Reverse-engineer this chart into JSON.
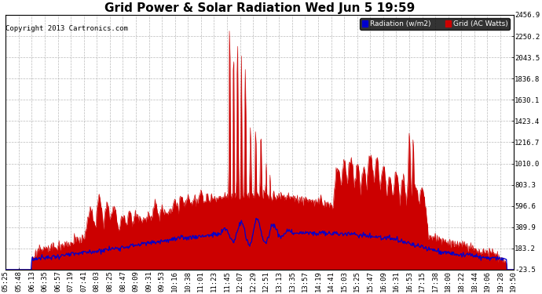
{
  "title": "Grid Power & Solar Radiation Wed Jun 5 19:59",
  "copyright": "Copyright 2013 Cartronics.com",
  "legend_radiation": "Radiation (w/m2)",
  "legend_grid": "Grid (AC Watts)",
  "yticks": [
    2456.9,
    2250.2,
    2043.5,
    1836.8,
    1630.1,
    1423.4,
    1216.7,
    1010.0,
    803.3,
    596.6,
    389.9,
    183.2,
    -23.5
  ],
  "ymin": -23.5,
  "ymax": 2456.9,
  "xtick_labels": [
    "05:25",
    "05:48",
    "06:13",
    "06:35",
    "06:57",
    "07:19",
    "07:41",
    "08:03",
    "08:25",
    "08:47",
    "09:09",
    "09:31",
    "09:53",
    "10:16",
    "10:38",
    "11:01",
    "11:23",
    "11:45",
    "12:07",
    "12:29",
    "12:51",
    "13:13",
    "13:35",
    "13:57",
    "14:19",
    "14:41",
    "15:03",
    "15:25",
    "15:47",
    "16:09",
    "16:31",
    "16:53",
    "17:15",
    "17:38",
    "18:00",
    "18:22",
    "18:44",
    "19:06",
    "19:28",
    "19:50"
  ],
  "bg_color": "#ffffff",
  "grid_color": "#aaaaaa",
  "radiation_color": "#0000cc",
  "grid_fill_color": "#cc0000",
  "title_fontsize": 11,
  "tick_fontsize": 6.5
}
